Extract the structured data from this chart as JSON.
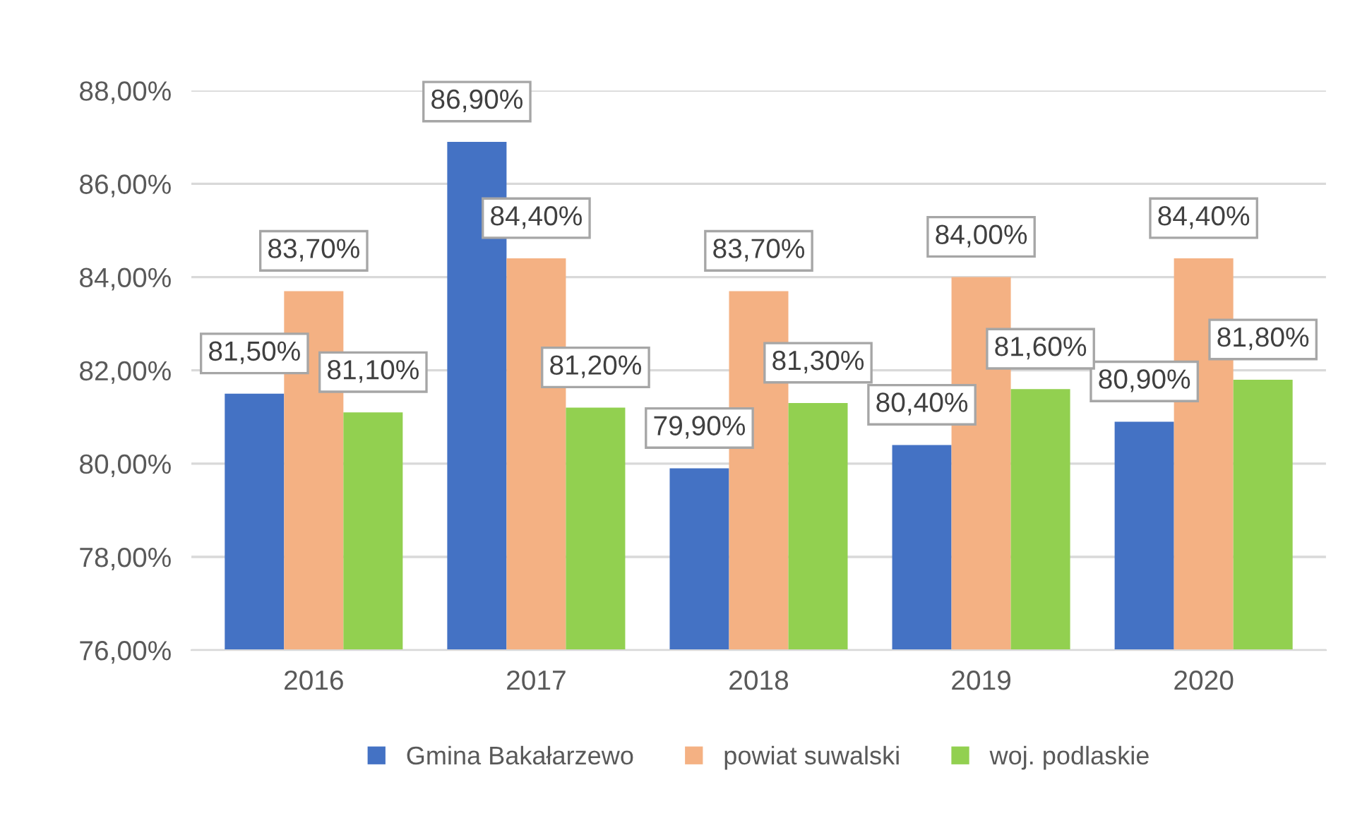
{
  "chart_data": {
    "type": "bar",
    "categories": [
      "2016",
      "2017",
      "2018",
      "2019",
      "2020"
    ],
    "series": [
      {
        "name": "Gmina Bakałarzewo",
        "color": "#4472c4",
        "values": [
          81.5,
          86.9,
          79.9,
          80.4,
          80.9
        ],
        "value_labels": [
          "81,50%",
          "86,90%",
          "79,90%",
          "80,40%",
          "80,90%"
        ]
      },
      {
        "name": "powiat suwalski",
        "color": "#f4b183",
        "values": [
          83.7,
          84.4,
          83.7,
          84.0,
          84.4
        ],
        "value_labels": [
          "83,70%",
          "84,40%",
          "83,70%",
          "84,00%",
          "84,40%"
        ]
      },
      {
        "name": "woj. podlaskie",
        "color": "#92d050",
        "values": [
          81.1,
          81.2,
          81.3,
          81.6,
          81.8
        ],
        "value_labels": [
          "81,10%",
          "81,20%",
          "81,30%",
          "81,60%",
          "81,80%"
        ]
      }
    ],
    "ylim": [
      76,
      88
    ],
    "yticks": [
      {
        "value": 76,
        "label": "76,00%"
      },
      {
        "value": 78,
        "label": "78,00%"
      },
      {
        "value": 80,
        "label": "80,00%"
      },
      {
        "value": 82,
        "label": "82,00%"
      },
      {
        "value": 84,
        "label": "84,00%"
      },
      {
        "value": 86,
        "label": "86,00%"
      },
      {
        "value": 88,
        "label": "88,00%"
      }
    ],
    "grid": "y",
    "legend": "bottom"
  }
}
